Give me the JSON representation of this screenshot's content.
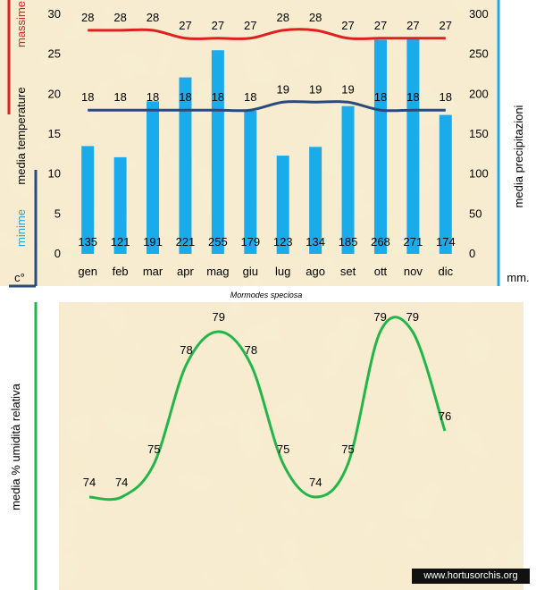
{
  "labels": {
    "left_axis_red": "massime",
    "left_axis_main": "media  temperature",
    "left_axis_blue": "minime",
    "left_unit": "c°",
    "right_axis": "media  precipitazioni",
    "right_unit": "mm.",
    "caption": "Mormodes speciosa",
    "humidity_axis": "media % umidità relativa",
    "credit": "www.hortusorchis.org"
  },
  "colors": {
    "bar": "#1aabea",
    "max_line": "#e02020",
    "min_line": "#2a4a7c",
    "humidity_line": "#22b54a",
    "panel_bg": "#f7ecce",
    "axis_red": "#d62222",
    "axis_blue": "#2a4a7c",
    "axis_right": "#19a9e6",
    "axis_green": "#22b54a"
  },
  "chart_data": [
    {
      "type": "bar",
      "categories": [
        "gen",
        "feb",
        "mar",
        "apr",
        "mag",
        "giu",
        "lug",
        "ago",
        "set",
        "ott",
        "nov",
        "dic"
      ],
      "series": [
        {
          "name": "media  precipitazioni",
          "axis": "right",
          "values": [
            135,
            121,
            191,
            221,
            255,
            179,
            123,
            134,
            185,
            268,
            271,
            174
          ]
        },
        {
          "name": "massime",
          "type": "line",
          "axis": "left",
          "values": [
            28,
            28,
            28,
            27,
            27,
            27,
            28,
            28,
            27,
            27,
            27,
            27
          ]
        },
        {
          "name": "minime",
          "type": "line",
          "axis": "left",
          "values": [
            18,
            18,
            18,
            18,
            18,
            18,
            19,
            19,
            19,
            18,
            18,
            18
          ]
        }
      ],
      "left_axis": {
        "range": [
          0,
          30
        ],
        "ticks": [
          0,
          5,
          10,
          15,
          20,
          25,
          30
        ]
      },
      "right_axis": {
        "range": [
          0,
          300
        ],
        "ticks": [
          0,
          50,
          100,
          150,
          200,
          250,
          300
        ]
      },
      "grid": false
    },
    {
      "type": "line",
      "categories": [
        "gen",
        "feb",
        "mar",
        "apr",
        "mag",
        "giu",
        "lug",
        "ago",
        "set",
        "ott",
        "nov",
        "dic"
      ],
      "series": [
        {
          "name": "media % umidità relativa",
          "values": [
            74,
            74,
            75,
            78,
            79,
            78,
            75,
            74,
            75,
            79,
            79,
            76
          ]
        }
      ],
      "grid": false
    }
  ]
}
